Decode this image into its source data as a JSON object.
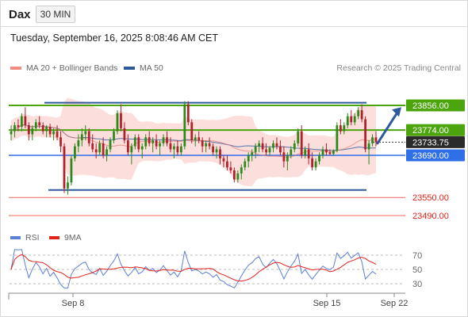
{
  "header": {
    "symbol": "Dax",
    "timeframe": "30 MIN"
  },
  "date_line": "Tuesday, September 16, 2025 8:08:46 AM CET",
  "legend": {
    "ma20": {
      "label": "MA 20 + Bollinger Bands",
      "color": "#f28b82"
    },
    "ma50": {
      "label": "MA 50",
      "color": "#2e5a9c"
    },
    "credit": "Research © 2025 Trading Central"
  },
  "rsi_legend": {
    "rsi": {
      "label": "RSI",
      "color": "#5b7fd6"
    },
    "ma9": {
      "label": "9MA",
      "color": "#e2231a"
    }
  },
  "chart_data": [
    {
      "type": "candlestick",
      "title": "Dax",
      "x_tick_labels": [
        "Sep 8",
        "Sep 15",
        "Sep 22"
      ],
      "price_levels": [
        {
          "value": 23856.0,
          "label": "23856.00",
          "color": "#4ca50d",
          "style": "resistance"
        },
        {
          "value": 23774.0,
          "label": "23774.00",
          "color": "#4ca50d",
          "style": "resistance"
        },
        {
          "value": 23733.75,
          "label": "23733.75",
          "color": "#2b2b2b",
          "style": "last-price"
        },
        {
          "value": 23690.0,
          "label": "23690.00",
          "color": "#2f6fe8",
          "style": "pivot"
        },
        {
          "value": 23550.0,
          "label": "23550.00",
          "color": "#e2231a",
          "style": "support"
        },
        {
          "value": 23490.0,
          "label": "23490.00",
          "color": "#e2231a",
          "style": "support"
        }
      ],
      "range_channel": {
        "upper": 23865,
        "lower": 23575
      },
      "series": [
        {
          "name": "Dax",
          "ohlc": [
            [
              23760,
              23790,
              23740,
              23770
            ],
            [
              23770,
              23800,
              23750,
              23790
            ],
            [
              23790,
              23810,
              23770,
              23785
            ],
            [
              23785,
              23830,
              23770,
              23820
            ],
            [
              23820,
              23850,
              23780,
              23790
            ],
            [
              23790,
              23800,
              23740,
              23760
            ],
            [
              23760,
              23790,
              23740,
              23780
            ],
            [
              23780,
              23810,
              23770,
              23800
            ],
            [
              23800,
              23820,
              23780,
              23790
            ],
            [
              23790,
              23800,
              23760,
              23770
            ],
            [
              23770,
              23790,
              23750,
              23785
            ],
            [
              23785,
              23795,
              23750,
              23760
            ],
            [
              23760,
              23780,
              23740,
              23770
            ],
            [
              23770,
              23790,
              23740,
              23750
            ],
            [
              23750,
              23770,
              23700,
              23720
            ],
            [
              23720,
              23730,
              23565,
              23580
            ],
            [
              23580,
              23620,
              23560,
              23600
            ],
            [
              23600,
              23690,
              23590,
              23680
            ],
            [
              23680,
              23730,
              23670,
              23720
            ],
            [
              23720,
              23760,
              23700,
              23740
            ],
            [
              23740,
              23780,
              23720,
              23760
            ],
            [
              23760,
              23790,
              23740,
              23770
            ],
            [
              23770,
              23780,
              23720,
              23730
            ],
            [
              23730,
              23760,
              23700,
              23710
            ],
            [
              23710,
              23730,
              23680,
              23700
            ],
            [
              23700,
              23740,
              23690,
              23730
            ],
            [
              23730,
              23750,
              23680,
              23690
            ],
            [
              23690,
              23720,
              23670,
              23710
            ],
            [
              23710,
              23750,
              23700,
              23740
            ],
            [
              23740,
              23780,
              23730,
              23770
            ],
            [
              23770,
              23840,
              23760,
              23830
            ],
            [
              23830,
              23860,
              23770,
              23780
            ],
            [
              23780,
              23800,
              23730,
              23740
            ],
            [
              23740,
              23760,
              23690,
              23700
            ],
            [
              23700,
              23730,
              23660,
              23720
            ],
            [
              23720,
              23760,
              23710,
              23750
            ],
            [
              23750,
              23760,
              23700,
              23710
            ],
            [
              23710,
              23730,
              23680,
              23720
            ],
            [
              23720,
              23760,
              23710,
              23750
            ],
            [
              23750,
              23770,
              23720,
              23730
            ],
            [
              23730,
              23750,
              23700,
              23740
            ],
            [
              23740,
              23760,
              23710,
              23720
            ],
            [
              23720,
              23740,
              23690,
              23730
            ],
            [
              23730,
              23760,
              23720,
              23750
            ],
            [
              23750,
              23770,
              23720,
              23730
            ],
            [
              23730,
              23750,
              23700,
              23710
            ],
            [
              23710,
              23730,
              23680,
              23720
            ],
            [
              23720,
              23740,
              23690,
              23700
            ],
            [
              23700,
              23730,
              23690,
              23720
            ],
            [
              23720,
              23870,
              23710,
              23860
            ],
            [
              23860,
              23870,
              23790,
              23800
            ],
            [
              23800,
              23810,
              23730,
              23740
            ],
            [
              23740,
              23760,
              23720,
              23750
            ],
            [
              23750,
              23770,
              23730,
              23740
            ],
            [
              23740,
              23750,
              23700,
              23720
            ],
            [
              23720,
              23740,
              23700,
              23730
            ],
            [
              23730,
              23750,
              23710,
              23720
            ],
            [
              23720,
              23730,
              23690,
              23700
            ],
            [
              23700,
              23720,
              23680,
              23710
            ],
            [
              23710,
              23720,
              23660,
              23680
            ],
            [
              23680,
              23690,
              23650,
              23670
            ],
            [
              23670,
              23690,
              23640,
              23650
            ],
            [
              23650,
              23670,
              23630,
              23640
            ],
            [
              23640,
              23650,
              23600,
              23610
            ],
            [
              23610,
              23640,
              23600,
              23630
            ],
            [
              23630,
              23660,
              23610,
              23650
            ],
            [
              23650,
              23680,
              23640,
              23670
            ],
            [
              23670,
              23700,
              23650,
              23690
            ],
            [
              23690,
              23710,
              23670,
              23700
            ],
            [
              23700,
              23730,
              23680,
              23720
            ],
            [
              23720,
              23740,
              23700,
              23730
            ],
            [
              23730,
              23750,
              23700,
              23710
            ],
            [
              23710,
              23730,
              23690,
              23700
            ],
            [
              23700,
              23720,
              23690,
              23715
            ],
            [
              23715,
              23740,
              23700,
              23730
            ],
            [
              23730,
              23750,
              23710,
              23720
            ],
            [
              23720,
              23740,
              23690,
              23700
            ],
            [
              23700,
              23720,
              23650,
              23670
            ],
            [
              23670,
              23700,
              23640,
              23690
            ],
            [
              23690,
              23720,
              23680,
              23710
            ],
            [
              23710,
              23740,
              23700,
              23730
            ],
            [
              23730,
              23780,
              23720,
              23770
            ],
            [
              23770,
              23790,
              23680,
              23690
            ],
            [
              23690,
              23720,
              23680,
              23710
            ],
            [
              23710,
              23730,
              23660,
              23680
            ],
            [
              23680,
              23700,
              23640,
              23650
            ],
            [
              23650,
              23680,
              23640,
              23670
            ],
            [
              23670,
              23700,
              23660,
              23690
            ],
            [
              23690,
              23720,
              23680,
              23710
            ],
            [
              23710,
              23730,
              23690,
              23700
            ],
            [
              23700,
              23710,
              23690,
              23695
            ],
            [
              23695,
              23710,
              23690,
              23705
            ],
            [
              23705,
              23800,
              23700,
              23790
            ],
            [
              23790,
              23810,
              23760,
              23770
            ],
            [
              23770,
              23800,
              23760,
              23790
            ],
            [
              23790,
              23830,
              23780,
              23820
            ],
            [
              23820,
              23840,
              23790,
              23800
            ],
            [
              23800,
              23830,
              23790,
              23820
            ],
            [
              23820,
              23850,
              23810,
              23840
            ],
            [
              23840,
              23860,
              23800,
              23810
            ],
            [
              23810,
              23820,
              23700,
              23710
            ],
            [
              23710,
              23740,
              23660,
              23730
            ],
            [
              23730,
              23760,
              23720,
              23750
            ],
            [
              23750,
              23770,
              23720,
              23734
            ]
          ]
        },
        {
          "name": "MA 20",
          "role": "moving-average"
        },
        {
          "name": "MA 50",
          "role": "moving-average"
        }
      ]
    },
    {
      "type": "line",
      "title": "RSI",
      "y_tick_labels": [
        "70",
        "50",
        "30"
      ],
      "ylim": [
        20,
        80
      ],
      "series": [
        {
          "name": "RSI",
          "role": "oscillator"
        },
        {
          "name": "9MA",
          "role": "signal"
        }
      ]
    }
  ]
}
